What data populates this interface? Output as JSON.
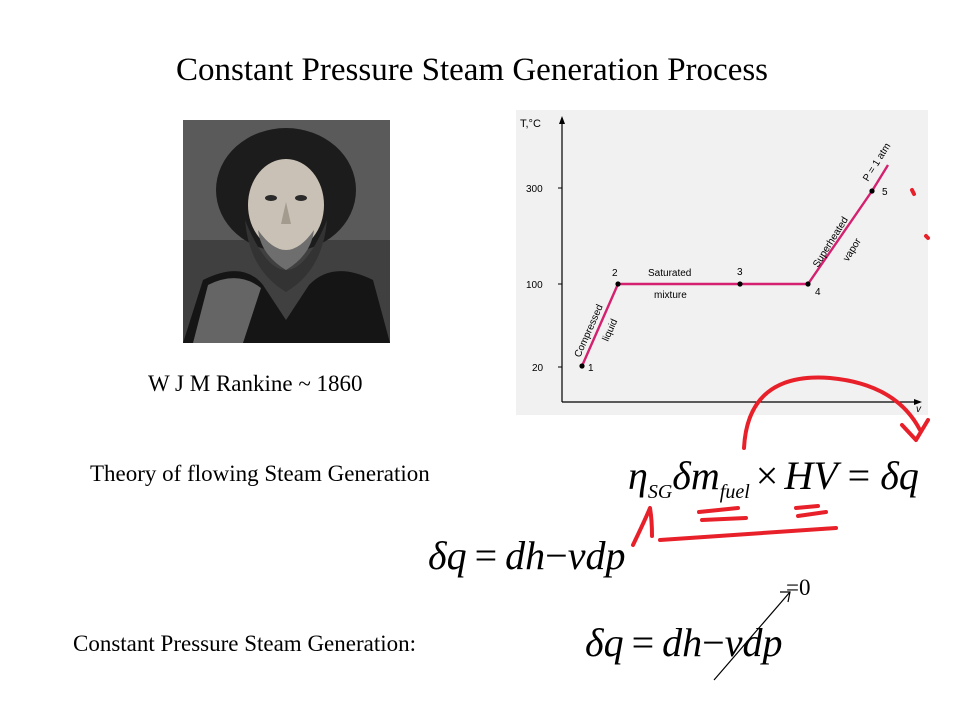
{
  "slide": {
    "title": "Constant Pressure Steam Generation Process",
    "caption": "W J M Rankine ~ 1860",
    "theory_label": "Theory of flowing Steam Generation",
    "constant_label": "Constant Pressure Steam Generation:",
    "zero_label": "=0"
  },
  "equations": {
    "eta": "η",
    "sg": "SG",
    "delta_m": "δm",
    "fuel": "fuel",
    "times": "×",
    "hv": "HV",
    "equals": "=",
    "delta_q": "δq",
    "dh": "dh",
    "minus": "−",
    "vdp": "vdp"
  },
  "graph": {
    "y_axis_label": "T,°C",
    "x_axis_label": "v",
    "y_ticks": [
      "300",
      "100",
      "20"
    ],
    "points": [
      "1",
      "2",
      "3",
      "4",
      "5"
    ],
    "regions": {
      "compressed": "Compressed",
      "liquid": "liquid",
      "saturated": "Saturated",
      "mixture": "mixture",
      "superheated": "Superheated",
      "vapor": "vapor",
      "pressure": "P = 1 atm"
    },
    "line_color": "#d4206f"
  },
  "annotation_color": "#e8202a"
}
